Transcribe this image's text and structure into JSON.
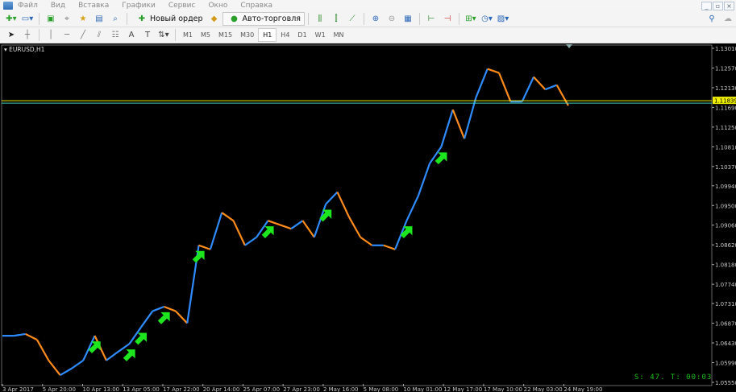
{
  "menu": {
    "items": [
      "Файл",
      "Вид",
      "Вставка",
      "Графики",
      "Сервис",
      "Окно",
      "Справка"
    ]
  },
  "window_controls": [
    "_",
    "▫",
    "×"
  ],
  "toolbar": {
    "new_order": "Новый ордер",
    "auto_trading": "Авто-торговля"
  },
  "timeframes": {
    "items": [
      "M1",
      "M5",
      "M15",
      "M30",
      "H1",
      "H4",
      "D1",
      "W1",
      "MN"
    ],
    "active": "H1"
  },
  "chart": {
    "symbol": "EURUSD,H1",
    "status_text": "S: 47. T: 00:03",
    "current_price": "1.11839",
    "colors": {
      "background": "#000000",
      "up": "#2f8cff",
      "down": "#ff8c1a",
      "signal_arrow": "#1ee61e",
      "price_line": "#f0f000",
      "bid_line": "#3fd0c0",
      "status": "#1ec21e"
    }
  },
  "chart_data": {
    "type": "line",
    "ylim": [
      1.0555,
      1.1301
    ],
    "y_ticks": [
      "1.13010",
      "1.12570",
      "1.12130",
      "1.11690",
      "1.11250",
      "1.10810",
      "1.10370",
      "1.09940",
      "1.09500",
      "1.09060",
      "1.08620",
      "1.08180",
      "1.07740",
      "1.07310",
      "1.06870",
      "1.06430",
      "1.05990",
      "1.05550"
    ],
    "x_ticks": [
      "3 Apr 2017",
      "5 Apr 20:00",
      "10 Apr 13:00",
      "13 Apr 05:00",
      "17 Apr 22:00",
      "20 Apr 14:00",
      "25 Apr 07:00",
      "27 Apr 23:00",
      "2 May 16:00",
      "5 May 08:00",
      "10 May 01:00",
      "12 May 17:00",
      "17 May 10:00",
      "22 May 03:00",
      "24 May 19:00"
    ],
    "prices": [
      1.0659,
      1.0659,
      1.0663,
      1.065,
      1.0604,
      1.0571,
      1.0586,
      1.0604,
      1.0659,
      1.0604,
      1.0623,
      1.0641,
      1.0678,
      1.0714,
      1.0724,
      1.0714,
      1.0687,
      1.0861,
      1.0852,
      1.0934,
      1.0916,
      1.0861,
      1.0879,
      1.0916,
      1.0907,
      1.0898,
      1.0916,
      1.0879,
      1.0953,
      1.098,
      1.0925,
      1.0879,
      1.0861,
      1.0861,
      1.0852,
      1.0916,
      1.0971,
      1.1044,
      1.1081,
      1.1164,
      1.1099,
      1.1191,
      1.1255,
      1.1246,
      1.1182,
      1.1182,
      1.1237,
      1.1209,
      1.1219,
      1.1173
    ],
    "buy_signals_at_index": [
      8,
      11,
      12,
      14,
      17,
      23,
      28,
      35,
      38
    ]
  }
}
